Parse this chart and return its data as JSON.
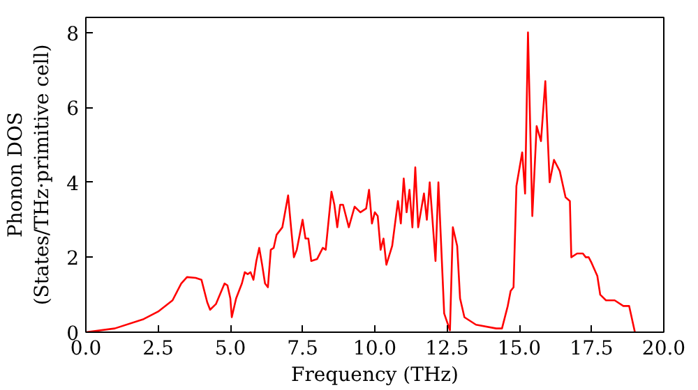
{
  "chart_data": {
    "type": "line",
    "xlabel": "Frequency (THz)",
    "ylabel": "Phonon DOS\n(States/THz·primitive cell)",
    "xlim": [
      0,
      20
    ],
    "ylim": [
      0,
      8.4
    ],
    "xticks": [
      {
        "value": 0,
        "label": "0.0"
      },
      {
        "value": 2.5,
        "label": "2.5"
      },
      {
        "value": 5,
        "label": "5.0"
      },
      {
        "value": 7.5,
        "label": "7.5"
      },
      {
        "value": 10,
        "label": "10.0"
      },
      {
        "value": 12.5,
        "label": "12.5"
      },
      {
        "value": 15,
        "label": "15.0"
      },
      {
        "value": 17.5,
        "label": "17.5"
      },
      {
        "value": 20,
        "label": "20.0"
      }
    ],
    "yticks": [
      0,
      2,
      4,
      6,
      8
    ],
    "grid": false,
    "marker": "none",
    "line_style": "solid",
    "series": [
      {
        "color": "#ff0000",
        "x": [
          0,
          1,
          2,
          2.5,
          3,
          3.3,
          3.5,
          3.8,
          4.0,
          4.2,
          4.3,
          4.5,
          4.8,
          4.9,
          5.0,
          5.05,
          5.2,
          5.4,
          5.5,
          5.6,
          5.7,
          5.8,
          5.9,
          6.0,
          6.1,
          6.2,
          6.3,
          6.4,
          6.5,
          6.6,
          6.8,
          7.0,
          7.1,
          7.2,
          7.3,
          7.5,
          7.6,
          7.7,
          7.8,
          8.0,
          8.2,
          8.3,
          8.5,
          8.6,
          8.7,
          8.8,
          8.9,
          9.1,
          9.3,
          9.5,
          9.7,
          9.8,
          9.9,
          10.0,
          10.1,
          10.2,
          10.3,
          10.4,
          10.6,
          10.8,
          10.9,
          11.0,
          11.1,
          11.2,
          11.3,
          11.4,
          11.5,
          11.7,
          11.8,
          11.9,
          12.1,
          12.2,
          12.4,
          12.6,
          12.7,
          12.85,
          12.95,
          13.1,
          13.5,
          14.2,
          14.4,
          14.6,
          14.7,
          14.8,
          14.9,
          15.1,
          15.2,
          15.3,
          15.45,
          15.6,
          15.75,
          15.9,
          16.05,
          16.2,
          16.4,
          16.6,
          16.75,
          16.8,
          17.0,
          17.2,
          17.3,
          17.4,
          17.5,
          17.7,
          17.8,
          18.0,
          18.3,
          18.6,
          18.8,
          19.0
        ],
        "values": [
          0,
          0.1,
          0.35,
          0.55,
          0.85,
          1.3,
          1.47,
          1.45,
          1.4,
          0.8,
          0.6,
          0.75,
          1.3,
          1.25,
          0.9,
          0.4,
          0.9,
          1.3,
          1.6,
          1.55,
          1.6,
          1.4,
          1.9,
          2.25,
          1.8,
          1.3,
          1.2,
          2.2,
          2.25,
          2.6,
          2.8,
          3.65,
          2.8,
          2.0,
          2.2,
          3.0,
          2.5,
          2.5,
          1.9,
          1.95,
          2.25,
          2.2,
          3.75,
          3.4,
          2.8,
          3.4,
          3.4,
          2.8,
          3.35,
          3.2,
          3.3,
          3.8,
          2.9,
          3.2,
          3.1,
          2.2,
          2.5,
          1.8,
          2.3,
          3.5,
          2.9,
          4.1,
          3.2,
          3.8,
          2.8,
          4.4,
          2.8,
          3.7,
          3.0,
          4.0,
          1.9,
          4.0,
          0.5,
          0.05,
          2.8,
          2.3,
          0.9,
          0.4,
          0.2,
          0.1,
          0.1,
          0.7,
          1.1,
          1.2,
          3.9,
          4.8,
          3.7,
          8.0,
          3.1,
          5.5,
          5.1,
          6.7,
          4.0,
          4.6,
          4.3,
          3.6,
          3.5,
          2.0,
          2.1,
          2.1,
          2.0,
          2.0,
          1.85,
          1.5,
          1.0,
          0.85,
          0.85,
          0.7,
          0.7,
          0.0
        ]
      }
    ]
  }
}
